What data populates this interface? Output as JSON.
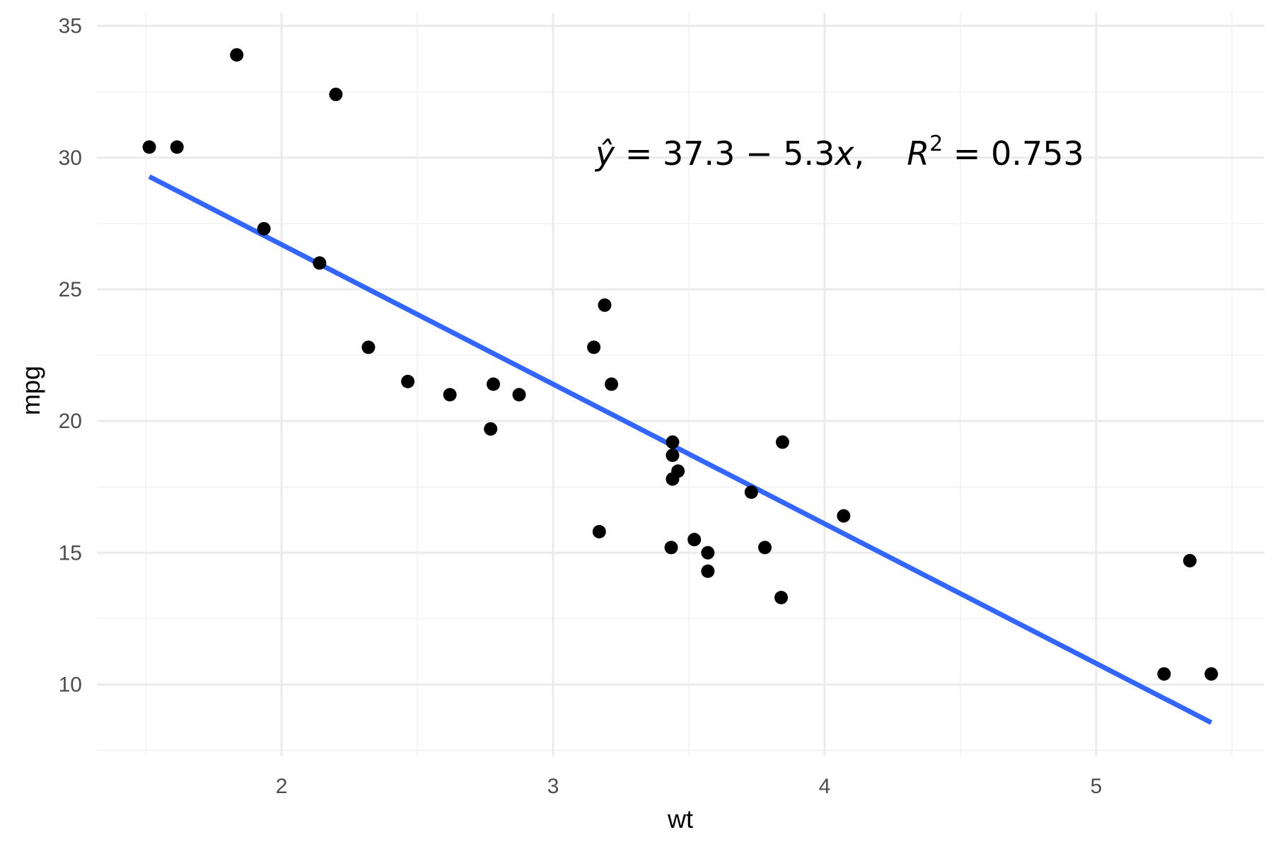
{
  "chart_data": {
    "type": "scatter",
    "title": "",
    "xlabel": "wt",
    "ylabel": "mpg",
    "xlim": [
      1.32,
      5.62
    ],
    "ylim": [
      7.3,
      35.5
    ],
    "x_ticks": [
      2,
      3,
      4,
      5
    ],
    "y_ticks": [
      10,
      15,
      20,
      25,
      30,
      35
    ],
    "x_tick_labels": [
      "2",
      "3",
      "4",
      "5"
    ],
    "y_tick_labels": [
      "10",
      "15",
      "20",
      "25",
      "30",
      "35"
    ],
    "x_minor_ticks": [
      1.5,
      2.5,
      3.5,
      4.5,
      5.5
    ],
    "y_minor_ticks": [
      7.5,
      12.5,
      17.5,
      22.5,
      27.5,
      32.5
    ],
    "grid": true,
    "legend": "none",
    "points": [
      {
        "x": 2.62,
        "y": 21.0
      },
      {
        "x": 2.875,
        "y": 21.0
      },
      {
        "x": 2.32,
        "y": 22.8
      },
      {
        "x": 3.215,
        "y": 21.4
      },
      {
        "x": 3.44,
        "y": 18.7
      },
      {
        "x": 3.46,
        "y": 18.1
      },
      {
        "x": 3.57,
        "y": 14.3
      },
      {
        "x": 3.19,
        "y": 24.4
      },
      {
        "x": 3.15,
        "y": 22.8
      },
      {
        "x": 3.44,
        "y": 19.2
      },
      {
        "x": 3.44,
        "y": 17.8
      },
      {
        "x": 4.07,
        "y": 16.4
      },
      {
        "x": 3.73,
        "y": 17.3
      },
      {
        "x": 3.78,
        "y": 15.2
      },
      {
        "x": 5.25,
        "y": 10.4
      },
      {
        "x": 5.424,
        "y": 10.4
      },
      {
        "x": 5.345,
        "y": 14.7
      },
      {
        "x": 2.2,
        "y": 32.4
      },
      {
        "x": 1.615,
        "y": 30.4
      },
      {
        "x": 1.835,
        "y": 33.9
      },
      {
        "x": 2.465,
        "y": 21.5
      },
      {
        "x": 3.52,
        "y": 15.5
      },
      {
        "x": 3.435,
        "y": 15.2
      },
      {
        "x": 3.84,
        "y": 13.3
      },
      {
        "x": 3.845,
        "y": 19.2
      },
      {
        "x": 1.935,
        "y": 27.3
      },
      {
        "x": 2.14,
        "y": 26.0
      },
      {
        "x": 1.513,
        "y": 30.4
      },
      {
        "x": 3.17,
        "y": 15.8
      },
      {
        "x": 2.77,
        "y": 19.7
      },
      {
        "x": 3.57,
        "y": 15.0
      },
      {
        "x": 2.78,
        "y": 21.4
      }
    ],
    "fit_line": {
      "intercept": 37.3,
      "slope": -5.3,
      "x_range": [
        1.513,
        5.424
      ],
      "color": "#3366ff"
    },
    "point_color": "#000000",
    "annotation": {
      "yhat": "ŷ",
      "equation_rest": " = 37.3 − 5.3",
      "x_var": "x",
      "comma": ",",
      "r": "R",
      "sup": "2",
      "r2_value": " = 0.753"
    }
  }
}
